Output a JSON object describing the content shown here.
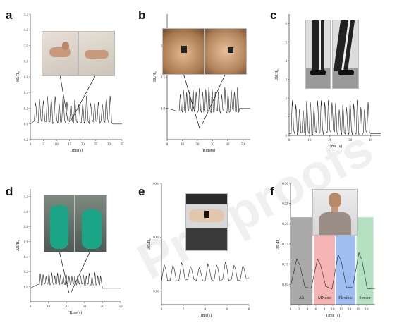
{
  "watermark": "Pre-proofs",
  "chart_data": [
    {
      "panel": "a",
      "type": "line",
      "xlabel": "Time(s)",
      "ylabel": "ΔR/R₀",
      "xlim": [
        0,
        35
      ],
      "ylim": [
        -0.2,
        1.4
      ],
      "xticks": [
        "0",
        "5",
        "10",
        "15",
        "20",
        "25",
        "30",
        "35"
      ],
      "yticks": [
        "-0.2",
        "0.0",
        "0.2",
        "0.4",
        "0.6",
        "0.8",
        "1.0",
        "1.2",
        "1.4"
      ],
      "signal": {
        "start": 1.5,
        "end": 31.5,
        "cycles": 20,
        "base": 0.02,
        "peak": 0.32,
        "tail": 0.0
      },
      "photos": [
        "bent-finger-photo",
        "straight-finger-photo"
      ]
    },
    {
      "panel": "b",
      "type": "line",
      "xlabel": "Time(s)",
      "ylabel": "ΔR/R₀",
      "xlim": [
        0,
        55
      ],
      "ylim": [
        -0.5,
        1.5
      ],
      "xticks": [
        "0",
        "10",
        "20",
        "30",
        "40",
        "50"
      ],
      "yticks": [
        "0.0",
        "0.5",
        "1.0"
      ],
      "signal": {
        "start": 8,
        "end": 48,
        "cycles": 19,
        "base": -0.05,
        "peak": 0.3,
        "tail": 0.0
      },
      "photos": [
        "elbow-bent-photo",
        "elbow-straight-photo"
      ]
    },
    {
      "panel": "c",
      "type": "line",
      "xlabel": "Time (s)",
      "ylabel": "ΔR/R₀",
      "xlim": [
        0,
        45
      ],
      "ylim": [
        0,
        6.5
      ],
      "xticks": [
        "0",
        "10",
        "20",
        "30",
        "40"
      ],
      "yticks": [
        "0",
        "1",
        "2",
        "3",
        "4",
        "5",
        "6"
      ],
      "signal": {
        "start": 1,
        "end": 40,
        "cycles": 22,
        "base": 0.1,
        "peak": 1.7,
        "tail": 0.1
      },
      "photos": [
        "knee-straight-photo",
        "knee-bent-photo"
      ]
    },
    {
      "panel": "d",
      "type": "line",
      "xlabel": "Time(s)",
      "ylabel": "ΔR/R₀",
      "xlim": [
        0,
        50
      ],
      "ylim": [
        -0.2,
        1.3
      ],
      "xticks": [
        "0",
        "10",
        "20",
        "30",
        "40",
        "50"
      ],
      "yticks": [
        "0.0",
        "0.2",
        "0.4",
        "0.6",
        "0.8",
        "1.0",
        "1.2"
      ],
      "signal": {
        "start": 5,
        "end": 40,
        "cycles": 22,
        "base": 0.03,
        "peak": 0.17,
        "tail": -0.02
      },
      "photos": [
        "glove-hand-open-photo",
        "glove-hand-closed-photo"
      ]
    },
    {
      "panel": "e",
      "type": "line",
      "xlabel": "Time(s)",
      "ylabel": "ΔR/R₀",
      "xlim": [
        0,
        8
      ],
      "ylim": [
        -0.005,
        0.04
      ],
      "xticks": [
        "0",
        "2",
        "4",
        "6",
        "8"
      ],
      "yticks": [
        "0.00",
        "0.02",
        "0.04"
      ],
      "signal": {
        "start": 0,
        "end": 8,
        "cycles": 10,
        "base": 0.004,
        "peak": 0.01,
        "tail": 0.005
      },
      "photos": [
        "wrist-pulse-photo"
      ]
    },
    {
      "panel": "f",
      "type": "line",
      "xlabel": "Time (s)",
      "ylabel": "ΔR/R₀",
      "xlim": [
        0,
        20
      ],
      "ylim": [
        0,
        0.3
      ],
      "xticks": [
        "0",
        "2",
        "4",
        "6",
        "8",
        "10",
        "12",
        "14",
        "16",
        "18"
      ],
      "yticks": [
        "0.05",
        "0.10",
        "0.15",
        "0.20",
        "0.25",
        "0.30"
      ],
      "regions": [
        {
          "label": "Ah",
          "from": 0,
          "to": 5.2,
          "color": "#9a9a9a"
        },
        {
          "label": "MXene",
          "from": 5.5,
          "to": 10.5,
          "color": "#f3a6a6"
        },
        {
          "label": "Flexible",
          "from": 10.7,
          "to": 15.3,
          "color": "#8fb4ee"
        },
        {
          "label": "Sensor",
          "from": 15.6,
          "to": 19.6,
          "color": "#a8dcb8"
        }
      ],
      "signal": {
        "start": 0,
        "end": 19.6,
        "cycles": 4,
        "base": 0.04,
        "peak": 0.12,
        "tail": 0.04
      },
      "photos": [
        "throat-photo"
      ]
    }
  ]
}
